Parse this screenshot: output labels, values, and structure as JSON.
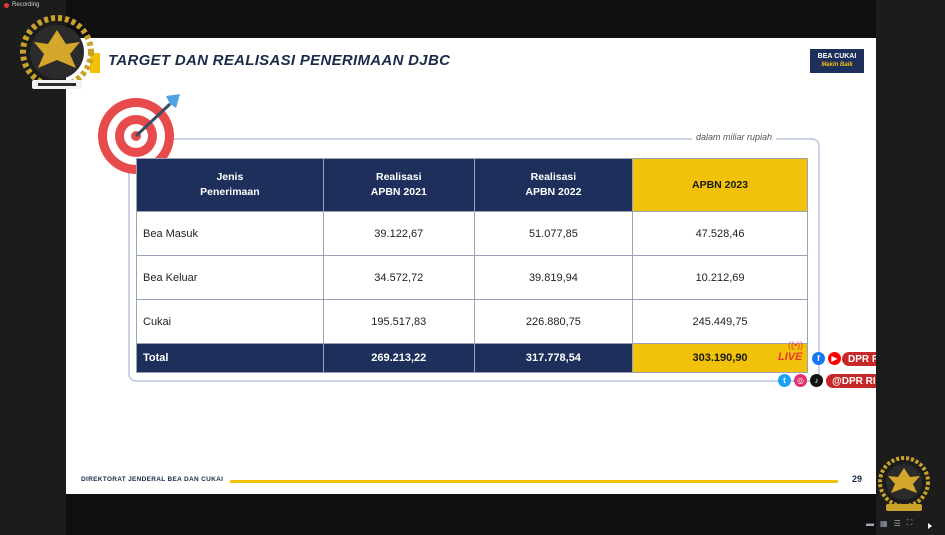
{
  "recording": {
    "label": "Recording"
  },
  "slide": {
    "title": "TARGET DAN REALISASI PENERIMAAN DJBC",
    "unit_note": "dalam miliar rupiah",
    "brand_logo": {
      "line1": "BEA CUKAI",
      "line2": "Makin Baik"
    },
    "footer_text": "DIREKTORAT JENDERAL  BEA DAN CUKAI",
    "page_number": "29"
  },
  "table": {
    "headers": {
      "type_line1": "Jenis",
      "type_line2": "Penerimaan",
      "col2021_line1": "Realisasi",
      "col2021_line2": "APBN 2021",
      "col2022_line1": "Realisasi",
      "col2022_line2": "APBN 2022",
      "col2023": "APBN 2023"
    },
    "rows": [
      {
        "label": "Bea Masuk",
        "v2021": "39.122,67",
        "v2022": "51.077,85",
        "v2023": "47.528,46"
      },
      {
        "label": "Bea Keluar",
        "v2021": "34.572,72",
        "v2022": "39.819,94",
        "v2023": "10.212,69"
      },
      {
        "label": "Cukai",
        "v2021": "195.517,83",
        "v2022": "226.880,75",
        "v2023": "245.449,75"
      }
    ],
    "total": {
      "label": "Total",
      "v2021": "269.213,22",
      "v2022": "317.778,54",
      "v2023": "303.190,90"
    }
  },
  "overlay": {
    "live_label": "LIVE",
    "channel_name": "DPR RI",
    "social_handle": "@DPR RI"
  },
  "colors": {
    "navy": "#1d2f5a",
    "gold": "#f2c20a",
    "live_red": "#e53935"
  }
}
